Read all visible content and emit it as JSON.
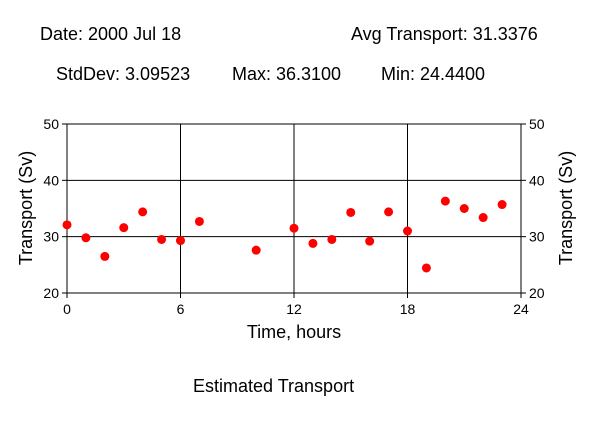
{
  "header": {
    "date": "Date: 2000 Jul 18",
    "avg": "Avg Transport: 31.3376",
    "stddev": "StdDev: 3.09523",
    "max": "Max: 36.3100",
    "min": "Min: 24.4400"
  },
  "caption": "Estimated Transport",
  "colors": {
    "marker": "#ff0000",
    "axes": "#000000",
    "background": "#ffffff"
  },
  "chart_data": {
    "type": "scatter",
    "title": "",
    "xlabel": "Time, hours",
    "ylabel": "Transport (Sv)",
    "ylabel_right": "Transport (Sv)",
    "xlim": [
      0,
      24
    ],
    "ylim": [
      20,
      50
    ],
    "xticks": [
      0,
      6,
      12,
      18,
      24
    ],
    "yticks": [
      20,
      30,
      40,
      50
    ],
    "xtick_labels": [
      "0",
      "6",
      "12",
      "18",
      "24"
    ],
    "ytick_labels": [
      "20",
      "30",
      "40",
      "50"
    ],
    "grid": true,
    "legend": "none",
    "series": [
      {
        "x": [
          0,
          1,
          2,
          3,
          4,
          5,
          6,
          7,
          10,
          12,
          13,
          14,
          15,
          16,
          17,
          18,
          19,
          20,
          21,
          22,
          23
        ],
        "y": [
          32.1,
          29.8,
          26.5,
          31.6,
          34.4,
          29.5,
          29.3,
          32.7,
          27.6,
          31.5,
          28.8,
          29.5,
          34.3,
          29.2,
          34.4,
          31.0,
          24.44,
          36.31,
          35.0,
          33.4,
          35.7
        ]
      }
    ]
  }
}
